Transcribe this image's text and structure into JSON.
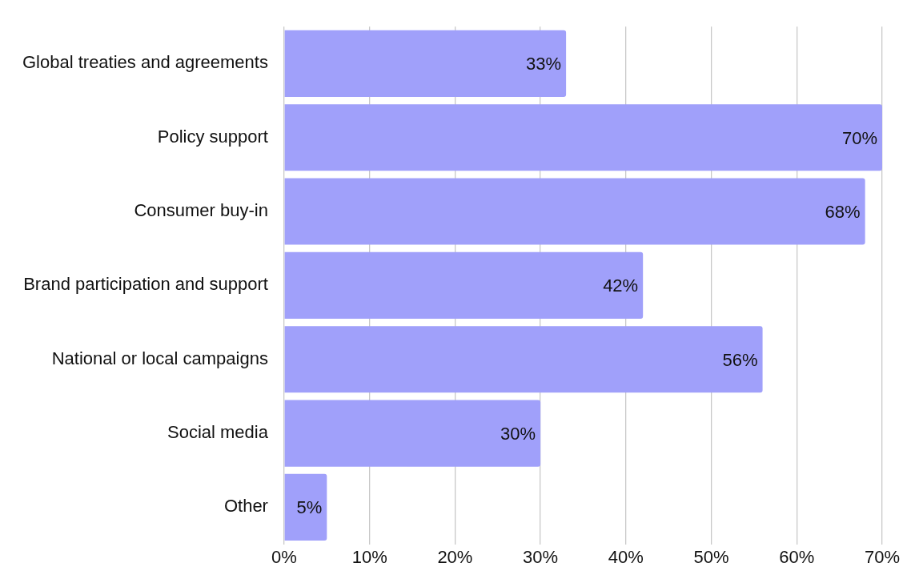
{
  "chart_data": {
    "type": "bar",
    "orientation": "horizontal",
    "categories": [
      "Global treaties and agreements",
      "Policy support",
      "Consumer buy-in",
      "Brand participation and support",
      "National or local campaigns",
      "Social media",
      "Other"
    ],
    "values": [
      33,
      70,
      68,
      42,
      56,
      30,
      5
    ],
    "color": "#a0a0fa",
    "xlim": [
      0,
      70
    ],
    "xticks": [
      {
        "value": 0,
        "label": "0%"
      },
      {
        "value": 10,
        "label": "10%"
      },
      {
        "value": 20,
        "label": "20%"
      },
      {
        "value": 30,
        "label": "30%"
      },
      {
        "value": 40,
        "label": "40%"
      },
      {
        "value": 50,
        "label": "50%"
      },
      {
        "value": 60,
        "label": "60%"
      },
      {
        "value": 70,
        "label": "70%"
      }
    ],
    "value_labels": [
      "33%",
      "70%",
      "68%",
      "42%",
      "56%",
      "30%",
      "5%"
    ],
    "grid": "x",
    "legend": false
  }
}
